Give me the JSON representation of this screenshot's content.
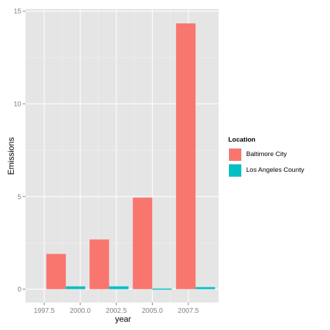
{
  "chart_data": {
    "type": "bar",
    "title": "",
    "xlabel": "year",
    "ylabel": "Emissions",
    "xlim": [
      1996.2,
      2009.6
    ],
    "ylim": [
      -0.72,
      15.12
    ],
    "x_ticks": [
      1997.5,
      2000.0,
      2002.5,
      2005.0,
      2007.5
    ],
    "x_tick_labels": [
      "1997.5",
      "2000.0",
      "2002.5",
      "2005.0",
      "2007.5"
    ],
    "y_ticks": [
      0,
      5,
      10,
      15
    ],
    "y_tick_labels": [
      "0",
      "5",
      "10",
      "15"
    ],
    "categories": [
      1999,
      2002,
      2005,
      2008
    ],
    "bar_width_years": 1.35,
    "grid": true,
    "legend_position": "right",
    "series": [
      {
        "name": "Baltimore City",
        "color": "#F8766D",
        "values": [
          1.9,
          2.68,
          4.94,
          14.34
        ]
      },
      {
        "name": "Los Angeles County",
        "color": "#00BFC4",
        "values": [
          0.15,
          0.15,
          0.03,
          0.11
        ]
      }
    ]
  },
  "legend": {
    "title": "Location",
    "items": [
      {
        "label": "Baltimore City",
        "color": "#F8766D"
      },
      {
        "label": "Los Angeles County",
        "color": "#00BFC4"
      }
    ]
  }
}
